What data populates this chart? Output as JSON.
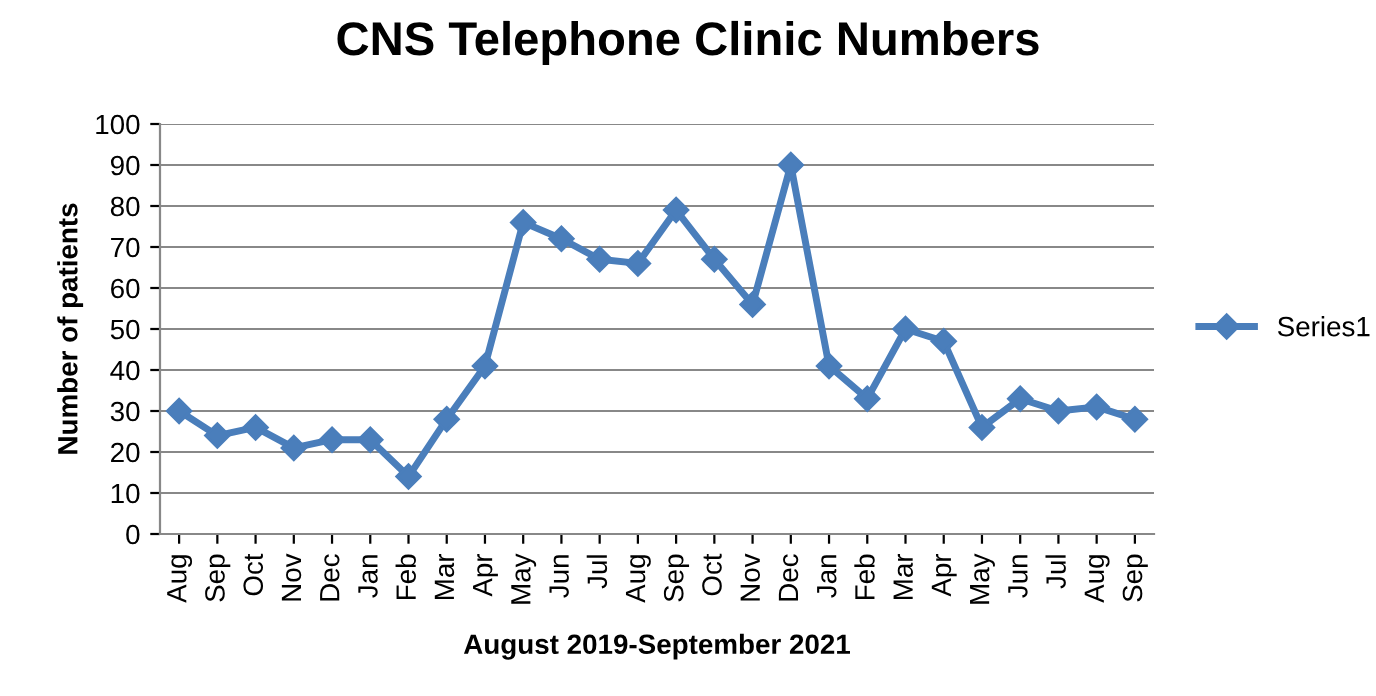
{
  "chart_data": {
    "type": "line",
    "title": "CNS Telephone Clinic Numbers",
    "xlabel": "August 2019-September 2021",
    "ylabel": "Number of patients",
    "categories": [
      "Aug",
      "Sep",
      "Oct",
      "Nov",
      "Dec",
      "Jan",
      "Feb",
      "Mar",
      "Apr",
      "May",
      "Jun",
      "Jul",
      "Aug",
      "Sep",
      "Oct",
      "Nov",
      "Dec",
      "Jan",
      "Feb",
      "Mar",
      "Apr",
      "May",
      "Jun",
      "Jul",
      "Aug",
      "Sep"
    ],
    "series": [
      {
        "name": "Series1",
        "color": "#4a7ebb",
        "values": [
          30,
          24,
          26,
          21,
          23,
          23,
          14,
          28,
          41,
          76,
          72,
          67,
          66,
          79,
          67,
          56,
          90,
          41,
          33,
          50,
          47,
          26,
          33,
          30,
          31,
          28
        ]
      }
    ],
    "ylim": [
      0,
      100
    ],
    "yticks": [
      0,
      10,
      20,
      30,
      40,
      50,
      60,
      70,
      80,
      90,
      100
    ],
    "grid": "y",
    "legend": "right",
    "marker": "diamond",
    "line_style": "solid"
  }
}
